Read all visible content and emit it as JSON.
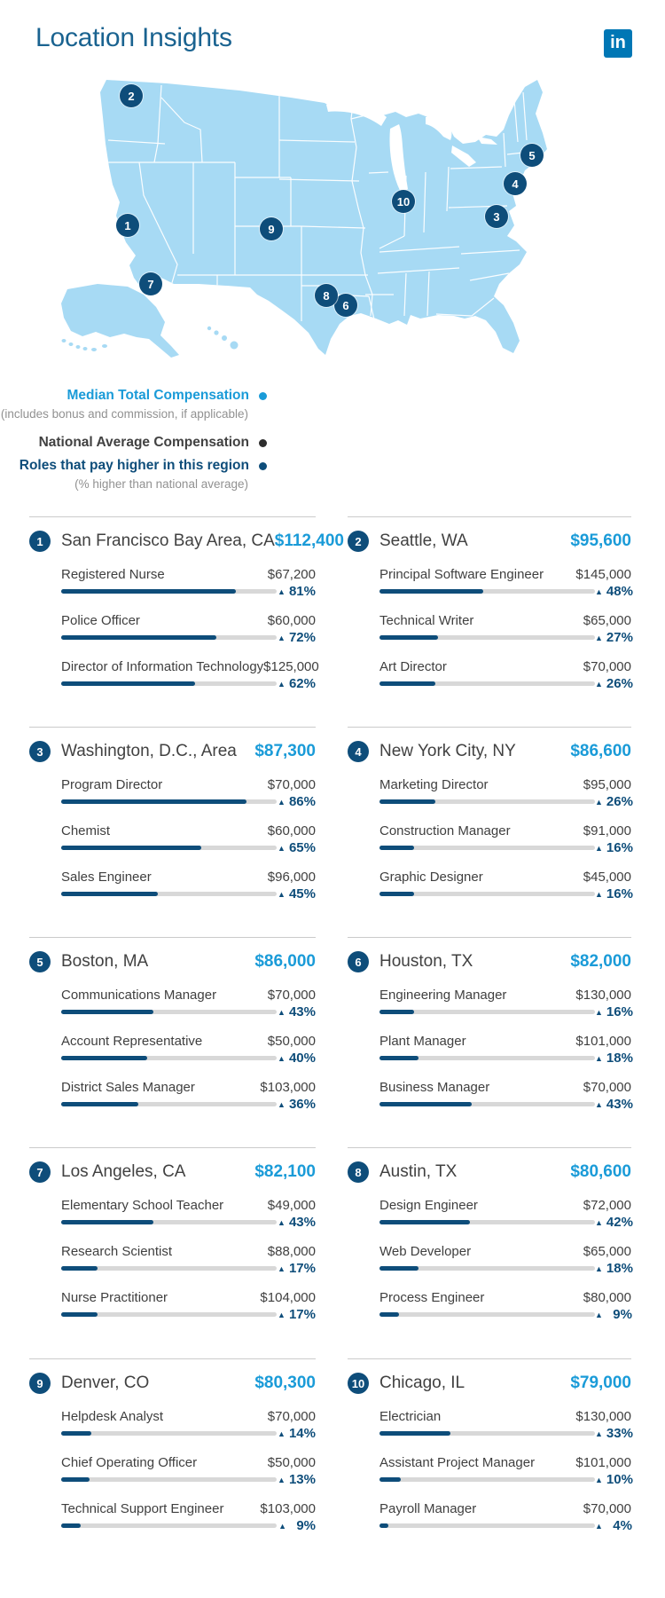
{
  "header": {
    "title": "Location Insights",
    "logo_text": "in"
  },
  "legend": {
    "items": [
      {
        "label": "Median Total Compensation",
        "sublabel": "(includes bonus and commission, if applicable)",
        "color": "#1a9bd8"
      },
      {
        "label": "National Average Compensation",
        "sublabel": "",
        "color": "#2d2d2d"
      },
      {
        "label": "Roles that pay higher in this region",
        "sublabel": "(% higher than national average)",
        "color": "#0e4d7a"
      }
    ]
  },
  "map": {
    "markers": [
      {
        "number": "1"
      },
      {
        "number": "2"
      },
      {
        "number": "3"
      },
      {
        "number": "4"
      },
      {
        "number": "5"
      },
      {
        "number": "6"
      },
      {
        "number": "7"
      },
      {
        "number": "8"
      },
      {
        "number": "9"
      },
      {
        "number": "10"
      }
    ]
  },
  "cards": [
    {
      "number": "1",
      "city": "San Francisco Bay Area, CA",
      "median": "$112,400",
      "roles": [
        {
          "name": "Registered Nurse",
          "salary": "$67,200",
          "pct": 81,
          "pct_label": "81%"
        },
        {
          "name": "Police Officer",
          "salary": "$60,000",
          "pct": 72,
          "pct_label": "72%"
        },
        {
          "name": "Director of Information Technology",
          "salary": "$125,000",
          "pct": 62,
          "pct_label": "62%"
        }
      ]
    },
    {
      "number": "2",
      "city": "Seattle, WA",
      "median": "$95,600",
      "roles": [
        {
          "name": "Principal Software Engineer",
          "salary": "$145,000",
          "pct": 48,
          "pct_label": "48%"
        },
        {
          "name": "Technical Writer",
          "salary": "$65,000",
          "pct": 27,
          "pct_label": "27%"
        },
        {
          "name": "Art Director",
          "salary": "$70,000",
          "pct": 26,
          "pct_label": "26%"
        }
      ]
    },
    {
      "number": "3",
      "city": "Washington, D.C., Area",
      "median": "$87,300",
      "roles": [
        {
          "name": "Program Director",
          "salary": "$70,000",
          "pct": 86,
          "pct_label": "86%"
        },
        {
          "name": "Chemist",
          "salary": "$60,000",
          "pct": 65,
          "pct_label": "65%"
        },
        {
          "name": "Sales Engineer",
          "salary": "$96,000",
          "pct": 45,
          "pct_label": "45%"
        }
      ]
    },
    {
      "number": "4",
      "city": "New York City, NY",
      "median": "$86,600",
      "roles": [
        {
          "name": "Marketing Director",
          "salary": "$95,000",
          "pct": 26,
          "pct_label": "26%"
        },
        {
          "name": "Construction Manager",
          "salary": "$91,000",
          "pct": 16,
          "pct_label": "16%"
        },
        {
          "name": "Graphic Designer",
          "salary": "$45,000",
          "pct": 16,
          "pct_label": "16%"
        }
      ]
    },
    {
      "number": "5",
      "city": "Boston, MA",
      "median": "$86,000",
      "roles": [
        {
          "name": "Communications Manager",
          "salary": "$70,000",
          "pct": 43,
          "pct_label": "43%"
        },
        {
          "name": "Account Representative",
          "salary": "$50,000",
          "pct": 40,
          "pct_label": "40%"
        },
        {
          "name": "District Sales Manager",
          "salary": "$103,000",
          "pct": 36,
          "pct_label": "36%"
        }
      ]
    },
    {
      "number": "6",
      "city": "Houston, TX",
      "median": "$82,000",
      "roles": [
        {
          "name": "Engineering Manager",
          "salary": "$130,000",
          "pct": 16,
          "pct_label": "16%"
        },
        {
          "name": "Plant Manager",
          "salary": "$101,000",
          "pct": 18,
          "pct_label": "18%"
        },
        {
          "name": "Business Manager",
          "salary": "$70,000",
          "pct": 43,
          "pct_label": "43%"
        }
      ]
    },
    {
      "number": "7",
      "city": "Los Angeles, CA",
      "median": "$82,100",
      "roles": [
        {
          "name": "Elementary School Teacher",
          "salary": "$49,000",
          "pct": 43,
          "pct_label": "43%"
        },
        {
          "name": "Research Scientist",
          "salary": "$88,000",
          "pct": 17,
          "pct_label": "17%"
        },
        {
          "name": "Nurse Practitioner",
          "salary": "$104,000",
          "pct": 17,
          "pct_label": "17%"
        }
      ]
    },
    {
      "number": "8",
      "city": "Austin, TX",
      "median": "$80,600",
      "roles": [
        {
          "name": "Design Engineer",
          "salary": "$72,000",
          "pct": 42,
          "pct_label": "42%"
        },
        {
          "name": "Web Developer",
          "salary": "$65,000",
          "pct": 18,
          "pct_label": "18%"
        },
        {
          "name": "Process Engineer",
          "salary": "$80,000",
          "pct": 9,
          "pct_label": "9%"
        }
      ]
    },
    {
      "number": "9",
      "city": "Denver, CO",
      "median": "$80,300",
      "roles": [
        {
          "name": "Helpdesk Analyst",
          "salary": "$70,000",
          "pct": 14,
          "pct_label": "14%"
        },
        {
          "name": "Chief Operating Officer",
          "salary": "$50,000",
          "pct": 13,
          "pct_label": "13%"
        },
        {
          "name": "Technical Support Engineer",
          "salary": "$103,000",
          "pct": 9,
          "pct_label": "9%"
        }
      ]
    },
    {
      "number": "10",
      "city": "Chicago, IL",
      "median": "$79,000",
      "roles": [
        {
          "name": "Electrician",
          "salary": "$130,000",
          "pct": 33,
          "pct_label": "33%"
        },
        {
          "name": "Assistant Project Manager",
          "salary": "$101,000",
          "pct": 10,
          "pct_label": "10%"
        },
        {
          "name": "Payroll Manager",
          "salary": "$70,000",
          "pct": 4,
          "pct_label": "4%"
        }
      ]
    }
  ],
  "colors": {
    "navy": "#0e4d7a",
    "value_blue": "#1a9bd8",
    "title_blue": "#1a6390",
    "map_blue": "#a7daf4",
    "track_gray": "#d8d8d8",
    "linkedin": "#0077b5"
  },
  "chart_data": {
    "type": "bar",
    "title": "Location Insights",
    "unit": "USD",
    "legend": [
      "Median Total Compensation (includes bonus and commission, if applicable)",
      "National Average Compensation",
      "Roles that pay higher in this region (% higher than national average)"
    ],
    "cities": [
      {
        "rank": 1,
        "city": "San Francisco Bay Area, CA",
        "median_total_compensation": 112400,
        "roles": [
          {
            "role": "Registered Nurse",
            "national_average": 67200,
            "pct_higher": 81
          },
          {
            "role": "Police Officer",
            "national_average": 60000,
            "pct_higher": 72
          },
          {
            "role": "Director of Information Technology",
            "national_average": 125000,
            "pct_higher": 62
          }
        ]
      },
      {
        "rank": 2,
        "city": "Seattle, WA",
        "median_total_compensation": 95600,
        "roles": [
          {
            "role": "Principal Software Engineer",
            "national_average": 145000,
            "pct_higher": 48
          },
          {
            "role": "Technical Writer",
            "national_average": 65000,
            "pct_higher": 27
          },
          {
            "role": "Art Director",
            "national_average": 70000,
            "pct_higher": 26
          }
        ]
      },
      {
        "rank": 3,
        "city": "Washington, D.C., Area",
        "median_total_compensation": 87300,
        "roles": [
          {
            "role": "Program Director",
            "national_average": 70000,
            "pct_higher": 86
          },
          {
            "role": "Chemist",
            "national_average": 60000,
            "pct_higher": 65
          },
          {
            "role": "Sales Engineer",
            "national_average": 96000,
            "pct_higher": 45
          }
        ]
      },
      {
        "rank": 4,
        "city": "New York City, NY",
        "median_total_compensation": 86600,
        "roles": [
          {
            "role": "Marketing Director",
            "national_average": 95000,
            "pct_higher": 26
          },
          {
            "role": "Construction Manager",
            "national_average": 91000,
            "pct_higher": 16
          },
          {
            "role": "Graphic Designer",
            "national_average": 45000,
            "pct_higher": 16
          }
        ]
      },
      {
        "rank": 5,
        "city": "Boston, MA",
        "median_total_compensation": 86000,
        "roles": [
          {
            "role": "Communications Manager",
            "national_average": 70000,
            "pct_higher": 43
          },
          {
            "role": "Account Representative",
            "national_average": 50000,
            "pct_higher": 40
          },
          {
            "role": "District Sales Manager",
            "national_average": 103000,
            "pct_higher": 36
          }
        ]
      },
      {
        "rank": 6,
        "city": "Houston, TX",
        "median_total_compensation": 82000,
        "roles": [
          {
            "role": "Engineering Manager",
            "national_average": 130000,
            "pct_higher": 16
          },
          {
            "role": "Plant Manager",
            "national_average": 101000,
            "pct_higher": 18
          },
          {
            "role": "Business Manager",
            "national_average": 70000,
            "pct_higher": 43
          }
        ]
      },
      {
        "rank": 7,
        "city": "Los Angeles, CA",
        "median_total_compensation": 82100,
        "roles": [
          {
            "role": "Elementary School Teacher",
            "national_average": 49000,
            "pct_higher": 43
          },
          {
            "role": "Research Scientist",
            "national_average": 88000,
            "pct_higher": 17
          },
          {
            "role": "Nurse Practitioner",
            "national_average": 104000,
            "pct_higher": 17
          }
        ]
      },
      {
        "rank": 8,
        "city": "Austin, TX",
        "median_total_compensation": 80600,
        "roles": [
          {
            "role": "Design Engineer",
            "national_average": 72000,
            "pct_higher": 42
          },
          {
            "role": "Web Developer",
            "national_average": 65000,
            "pct_higher": 18
          },
          {
            "role": "Process Engineer",
            "national_average": 80000,
            "pct_higher": 9
          }
        ]
      },
      {
        "rank": 9,
        "city": "Denver, CO",
        "median_total_compensation": 80300,
        "roles": [
          {
            "role": "Helpdesk Analyst",
            "national_average": 70000,
            "pct_higher": 14
          },
          {
            "role": "Chief Operating Officer",
            "national_average": 50000,
            "pct_higher": 13
          },
          {
            "role": "Technical Support Engineer",
            "national_average": 103000,
            "pct_higher": 9
          }
        ]
      },
      {
        "rank": 10,
        "city": "Chicago, IL",
        "median_total_compensation": 79000,
        "roles": [
          {
            "role": "Electrician",
            "national_average": 130000,
            "pct_higher": 33
          },
          {
            "role": "Assistant Project Manager",
            "national_average": 101000,
            "pct_higher": 10
          },
          {
            "role": "Payroll Manager",
            "national_average": 70000,
            "pct_higher": 4
          }
        ]
      }
    ]
  }
}
